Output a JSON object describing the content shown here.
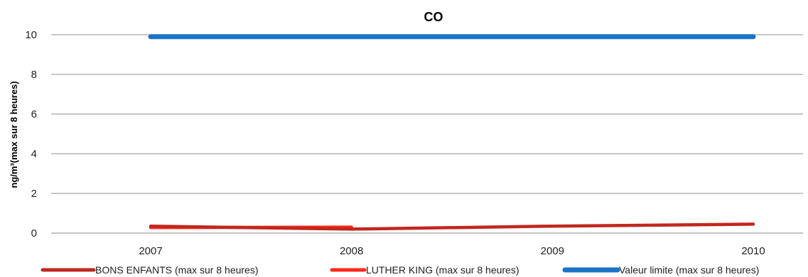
{
  "chart_data": {
    "type": "line",
    "title": "CO",
    "xlabel": "",
    "ylabel": "ng/m³(max sur 8 heures)",
    "categories": [
      "2007",
      "2008",
      "2009",
      "2010"
    ],
    "ylim": [
      0,
      10
    ],
    "yticks": [
      0,
      2,
      4,
      6,
      8,
      10
    ],
    "grid": true,
    "legend_position": "bottom",
    "series": [
      {
        "name": "BONS ENFANTS (max sur 8 heures)",
        "color": "#c0281e",
        "values": [
          0.35,
          0.2,
          0.35,
          0.45
        ]
      },
      {
        "name": "LUTHER KING (max sur 8 heures)",
        "color": "#ff2a1a",
        "values": [
          0.28,
          0.3,
          null,
          null
        ]
      },
      {
        "name": "Valeur limite (max sur 8 heures)",
        "color": "#1a73c8",
        "values": [
          9.9,
          9.9,
          9.9,
          9.9
        ]
      }
    ]
  }
}
